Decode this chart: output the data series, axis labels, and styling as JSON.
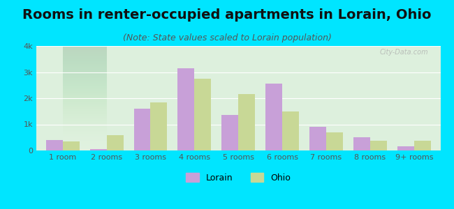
{
  "title": "Rooms in renter-occupied apartments in Lorain, Ohio",
  "subtitle": "(Note: State values scaled to Lorain population)",
  "categories": [
    "1 room",
    "2 rooms",
    "3 rooms",
    "4 rooms",
    "5 rooms",
    "6 rooms",
    "7 rooms",
    "8 rooms",
    "9+ rooms"
  ],
  "lorain_values": [
    400,
    50,
    1600,
    3150,
    1350,
    2550,
    900,
    520,
    150
  ],
  "ohio_values": [
    350,
    600,
    1850,
    2750,
    2150,
    1500,
    700,
    370,
    380
  ],
  "lorain_color": "#c8a0d8",
  "ohio_color": "#c8d896",
  "background_color": "#00e5ff",
  "plot_bg_gradient_top": "#d8f0d8",
  "plot_bg_gradient_bottom": "#e8f5e8",
  "ylim": [
    0,
    4000
  ],
  "yticks": [
    0,
    1000,
    2000,
    3000,
    4000
  ],
  "ytick_labels": [
    "0",
    "1k",
    "2k",
    "3k",
    "4k"
  ],
  "bar_width": 0.38,
  "title_fontsize": 14,
  "subtitle_fontsize": 9,
  "watermark": "City-Data.com"
}
